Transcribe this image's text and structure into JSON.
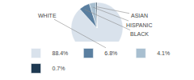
{
  "chart_data": {
    "type": "pie",
    "categories": [
      "WHITE",
      "BLACK",
      "HISPANIC",
      "ASIAN"
    ],
    "values": [
      88.4,
      6.8,
      4.1,
      0.7
    ],
    "value_labels": [
      "88.4%",
      "6.8%",
      "4.1%",
      "0.7%"
    ],
    "colors": [
      "#d9e2ec",
      "#5a7fa0",
      "#a8bfd0",
      "#1e3a52"
    ],
    "legend": "bottom"
  }
}
